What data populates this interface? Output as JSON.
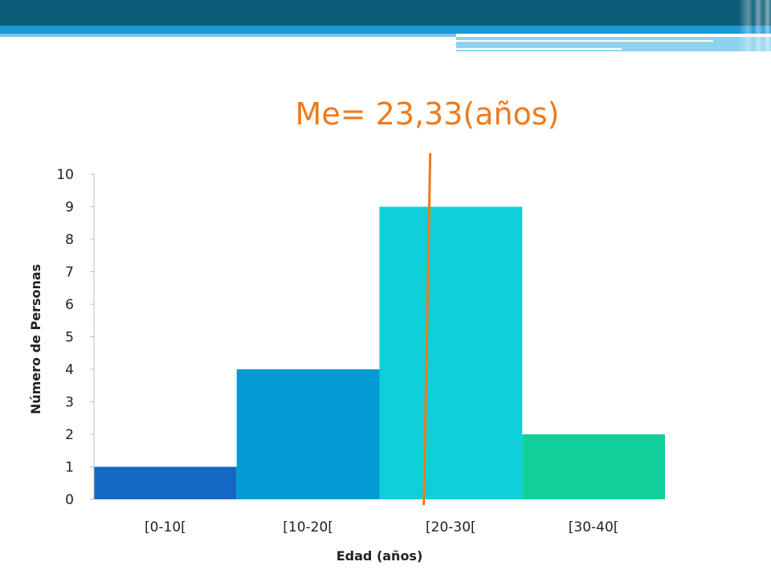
{
  "chart_data": {
    "type": "bar",
    "title": "Me= 23,33(años)",
    "xlabel": "Edad (años)",
    "ylabel": "Número de Personas",
    "categories": [
      "[0-10[",
      "[10-20[",
      "[20-30[",
      "[30-40["
    ],
    "values": [
      1,
      4,
      9,
      2
    ],
    "ylim": [
      0,
      10
    ],
    "yticks": [
      0,
      1,
      2,
      3,
      4,
      5,
      6,
      7,
      8,
      9,
      10
    ],
    "bar_colors": [
      "#1269c4",
      "#039bd6",
      "#0fd0da",
      "#13cf9c"
    ],
    "grid": false,
    "legend": "none",
    "median_line": {
      "x_value": 23.33,
      "color": "#f07a1a"
    }
  }
}
